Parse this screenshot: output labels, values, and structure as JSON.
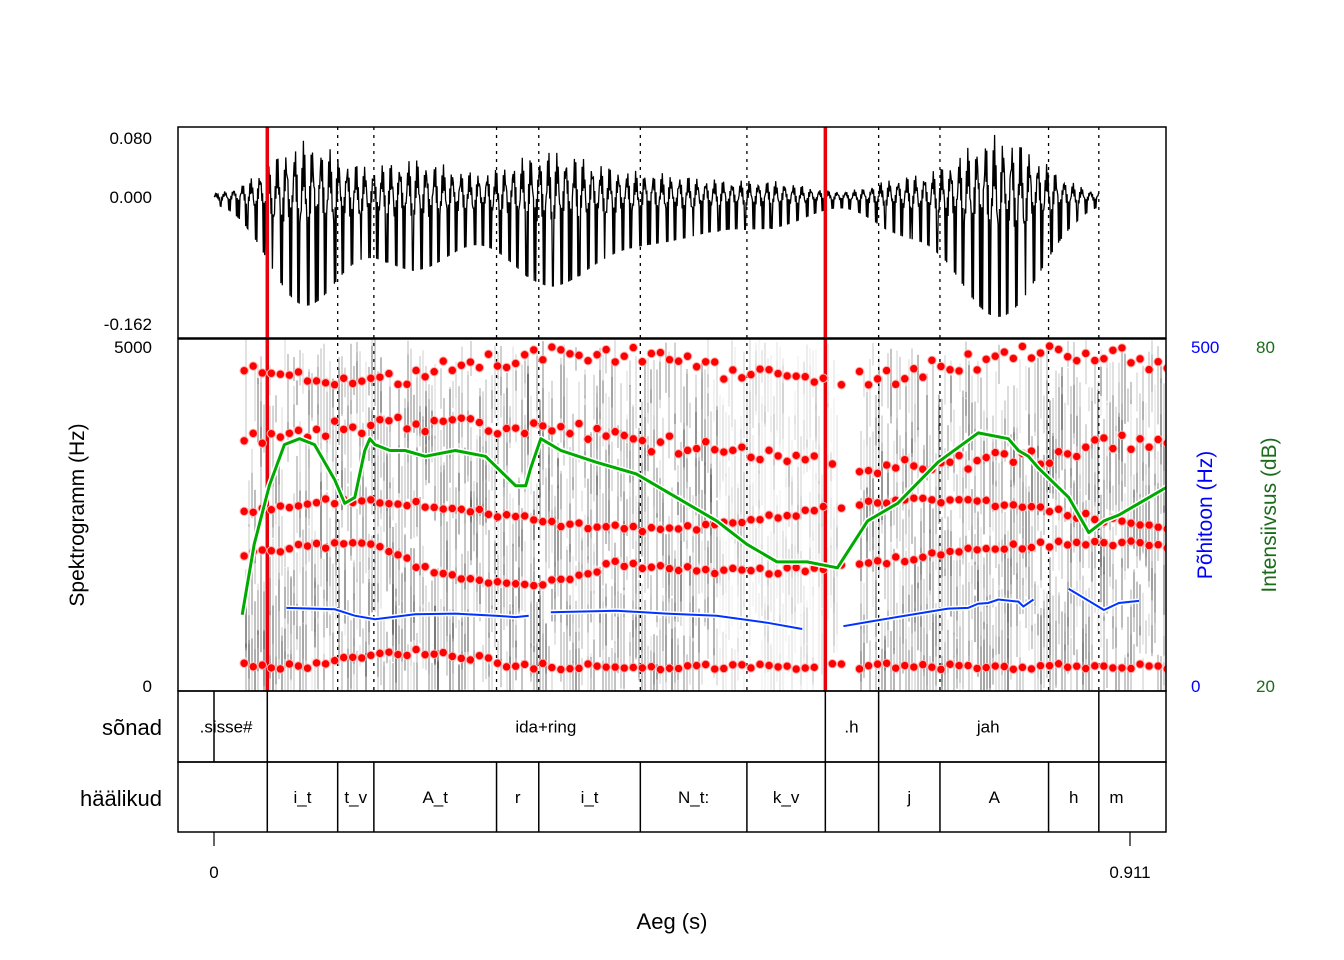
{
  "chart_data": {
    "type": "line",
    "xlabel": "Aeg (s)",
    "x_ticks": [
      {
        "value": 0,
        "label": "0"
      },
      {
        "value": 0.911,
        "label": "0.911"
      }
    ],
    "waveform": {
      "y_ticks": [
        "0.080",
        "0.000",
        "-0.162"
      ],
      "ylim": [
        -0.162,
        0.08
      ]
    },
    "spectrogram": {
      "ylabel": "Spektrogramm (Hz)",
      "ylim": [
        0,
        5000
      ],
      "y_tick_labels": [
        "5000",
        "0"
      ],
      "formant_color": "#ff0000"
    },
    "pitch": {
      "label": "Põhitoon (Hz)",
      "ylim": [
        0,
        500
      ],
      "tick_labels": [
        "500",
        "0"
      ],
      "color": "#0033ff",
      "segments": [
        {
          "x": [
            0.072,
            0.12,
            0.14,
            0.16,
            0.2,
            0.24,
            0.28,
            0.3,
            0.313
          ],
          "y": [
            118,
            116,
            107,
            102,
            109,
            110,
            107,
            105,
            107
          ]
        },
        {
          "x": [
            0.335,
            0.4,
            0.45,
            0.5,
            0.55,
            0.585
          ],
          "y": [
            112,
            114,
            110,
            107,
            97,
            88
          ]
        },
        {
          "x": [
            0.626,
            0.65,
            0.7,
            0.73,
            0.75,
            0.76,
            0.77,
            0.78,
            0.8,
            0.805,
            0.815
          ],
          "y": [
            92,
            98,
            110,
            117,
            118,
            124,
            125,
            130,
            127,
            120,
            130
          ]
        },
        {
          "x": [
            0.85,
            0.87,
            0.885,
            0.9,
            0.92
          ],
          "y": [
            145,
            128,
            115,
            125,
            128
          ]
        }
      ]
    },
    "intensity": {
      "label": "Intensiivsus (dB)",
      "ylim": [
        20,
        80
      ],
      "tick_labels": [
        "80",
        "20"
      ],
      "color": "#00aa00",
      "x": [
        0.028,
        0.04,
        0.055,
        0.07,
        0.085,
        0.1,
        0.12,
        0.13,
        0.14,
        0.15,
        0.155,
        0.16,
        0.175,
        0.19,
        0.21,
        0.24,
        0.27,
        0.3,
        0.31,
        0.315,
        0.325,
        0.345,
        0.38,
        0.42,
        0.46,
        0.5,
        0.53,
        0.56,
        0.59,
        0.62,
        0.65,
        0.68,
        0.72,
        0.76,
        0.79,
        0.8,
        0.81,
        0.82,
        0.85,
        0.87,
        0.885,
        0.9,
        0.92,
        0.95
      ],
      "y": [
        33,
        45,
        55,
        62,
        63,
        62,
        56,
        52,
        53,
        61,
        63,
        62,
        61,
        61,
        60,
        61,
        60,
        55,
        55,
        58,
        63,
        61,
        59,
        57,
        53,
        49,
        45,
        42,
        42,
        41,
        49,
        52,
        59,
        64,
        63,
        61,
        60,
        58,
        53,
        47,
        49,
        50,
        52,
        55
      ]
    },
    "boundaries": {
      "red_lines": [
        0.053,
        0.608
      ],
      "dotted_lines": [
        0.123,
        0.159,
        0.281,
        0.323,
        0.424,
        0.53,
        0.661,
        0.722,
        0.83,
        0.88
      ]
    },
    "waveform_range": [
      0,
      0.88
    ],
    "tiers": [
      {
        "name": "sõnad",
        "intervals": [
          {
            "start": -0.035,
            "end": 0.0,
            "label": ".sisse#"
          },
          {
            "start": 0.0,
            "end": 0.053,
            "label": ""
          },
          {
            "start": 0.053,
            "end": 0.608,
            "label": "ida+ring"
          },
          {
            "start": 0.608,
            "end": 0.661,
            "label": ".h"
          },
          {
            "start": 0.661,
            "end": 0.88,
            "label": "jah"
          },
          {
            "start": 0.88,
            "end": 0.915,
            "label": ""
          }
        ],
        "label_positions": [
          0.012,
          0.33,
          0.634,
          0.77,
          0.896
        ]
      },
      {
        "name": "häälikud",
        "intervals": [
          {
            "start": -0.035,
            "end": 0.053,
            "label": ""
          },
          {
            "start": 0.053,
            "end": 0.123,
            "label": "i_t"
          },
          {
            "start": 0.123,
            "end": 0.159,
            "label": "t_v"
          },
          {
            "start": 0.159,
            "end": 0.281,
            "label": "A_t"
          },
          {
            "start": 0.281,
            "end": 0.323,
            "label": "r"
          },
          {
            "start": 0.323,
            "end": 0.424,
            "label": "i_t"
          },
          {
            "start": 0.424,
            "end": 0.53,
            "label": "N_t:"
          },
          {
            "start": 0.53,
            "end": 0.608,
            "label": "k_v"
          },
          {
            "start": 0.608,
            "end": 0.661,
            "label": ""
          },
          {
            "start": 0.661,
            "end": 0.722,
            "label": "j"
          },
          {
            "start": 0.722,
            "end": 0.83,
            "label": "A"
          },
          {
            "start": 0.83,
            "end": 0.88,
            "label": "h"
          },
          {
            "start": 0.88,
            "end": 0.915,
            "label": "m"
          }
        ]
      }
    ]
  }
}
